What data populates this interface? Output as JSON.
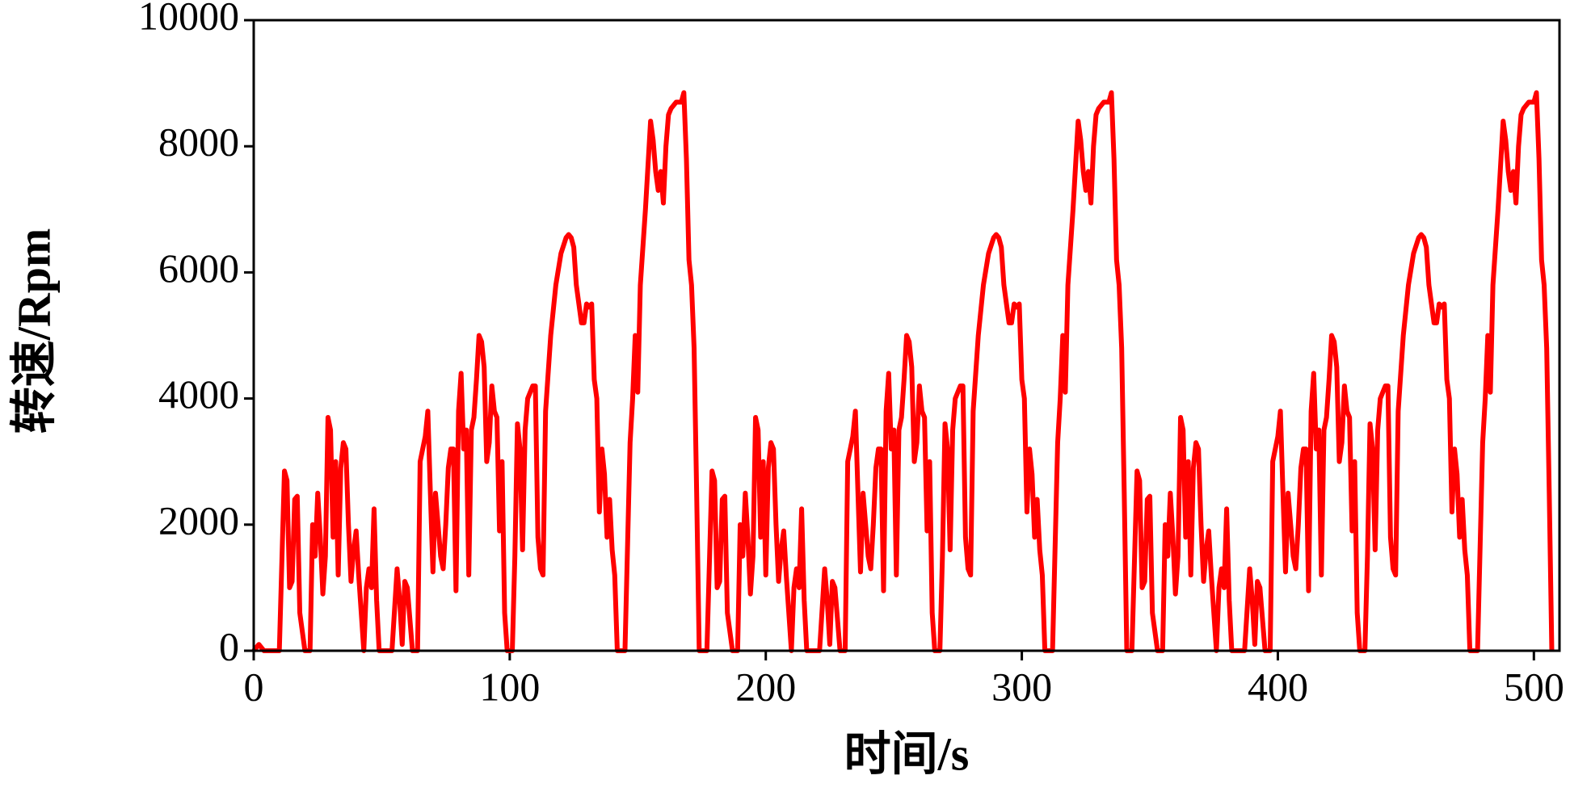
{
  "chart_data": {
    "type": "line",
    "xlabel": "时间/s",
    "ylabel": "转速/Rpm",
    "xlim": [
      0,
      510
    ],
    "xticks": [
      0,
      100,
      200,
      300,
      400,
      500
    ],
    "ylim": [
      0,
      10000
    ],
    "yticks": [
      0,
      2000,
      4000,
      6000,
      8000,
      10000
    ],
    "x": [
      0,
      2,
      4,
      10,
      12,
      13,
      14,
      15,
      16,
      17,
      18,
      20,
      22,
      23,
      24,
      25,
      26,
      27,
      28,
      29,
      30,
      31,
      32,
      33,
      34,
      35,
      36,
      37,
      38,
      39,
      40,
      41,
      42,
      43,
      44,
      45,
      46,
      47,
      48,
      49,
      54,
      56,
      57,
      58,
      59,
      60,
      62,
      64,
      65,
      67,
      68,
      69,
      70,
      71,
      72,
      73,
      74,
      75,
      76,
      77,
      78,
      79,
      80,
      81,
      82,
      83,
      84,
      85,
      86,
      87,
      88,
      89,
      90,
      91,
      92,
      93,
      94,
      95,
      96,
      97,
      98,
      99,
      101,
      102,
      103,
      104,
      105,
      106,
      107,
      108,
      109,
      110,
      111,
      112,
      113,
      114,
      116,
      118,
      120,
      122,
      123,
      124,
      125,
      126,
      127,
      128,
      129,
      130,
      131,
      132,
      133,
      134,
      135,
      136,
      137,
      138,
      139,
      140,
      141,
      142,
      145,
      147,
      148,
      149,
      150,
      151,
      153,
      155,
      156,
      157,
      158,
      159,
      160,
      161,
      162,
      163,
      165,
      167,
      168,
      169,
      170,
      171,
      172,
      173,
      174,
      177,
      179,
      180,
      181,
      182,
      183,
      184,
      185,
      187,
      189,
      190,
      191,
      192,
      193,
      194,
      195,
      196,
      197,
      198,
      199,
      200,
      201,
      202,
      203,
      204,
      205,
      206,
      207,
      208,
      209,
      210,
      211,
      212,
      213,
      214,
      215,
      216,
      221,
      223,
      224,
      225,
      226,
      227,
      229,
      231,
      232,
      234,
      235,
      236,
      237,
      238,
      239,
      240,
      241,
      242,
      243,
      244,
      245,
      246,
      247,
      248,
      249,
      250,
      251,
      252,
      253,
      254,
      255,
      256,
      257,
      258,
      259,
      260,
      261,
      262,
      263,
      264,
      265,
      266,
      268,
      269,
      270,
      271,
      272,
      273,
      274,
      275,
      276,
      277,
      278,
      279,
      280,
      281,
      283,
      285,
      287,
      289,
      290,
      291,
      292,
      293,
      294,
      295,
      296,
      297,
      298,
      299,
      300,
      301,
      302,
      303,
      304,
      305,
      306,
      307,
      308,
      309,
      312,
      314,
      315,
      316,
      317,
      318,
      320,
      322,
      323,
      324,
      325,
      326,
      327,
      328,
      329,
      330,
      332,
      334,
      335,
      336,
      337,
      338,
      339,
      340,
      341,
      343,
      345,
      346,
      347,
      348,
      349,
      350,
      351,
      353,
      355,
      356,
      357,
      358,
      359,
      360,
      361,
      362,
      363,
      364,
      365,
      366,
      367,
      368,
      369,
      370,
      371,
      372,
      373,
      374,
      375,
      376,
      377,
      378,
      379,
      380,
      381,
      382,
      387,
      389,
      390,
      391,
      392,
      393,
      395,
      397,
      398,
      400,
      401,
      402,
      403,
      404,
      405,
      406,
      407,
      408,
      409,
      410,
      411,
      412,
      413,
      414,
      415,
      416,
      417,
      418,
      419,
      420,
      421,
      422,
      423,
      424,
      425,
      426,
      427,
      428,
      429,
      430,
      431,
      432,
      434,
      435,
      436,
      437,
      438,
      439,
      440,
      441,
      442,
      443,
      444,
      445,
      446,
      447,
      449,
      451,
      453,
      455,
      456,
      457,
      458,
      459,
      460,
      461,
      462,
      463,
      464,
      465,
      466,
      467,
      468,
      469,
      470,
      471,
      472,
      473,
      474,
      475,
      478,
      480,
      481,
      482,
      483,
      484,
      486,
      488,
      489,
      490,
      491,
      492,
      493,
      494,
      495,
      496,
      498,
      500,
      501,
      502,
      503,
      504,
      505,
      506,
      507
    ],
    "series": [
      {
        "name": "转速",
        "color": "#ff0000",
        "values": [
          0,
          100,
          0,
          0,
          2850,
          2700,
          1000,
          1100,
          2400,
          2450,
          600,
          0,
          0,
          2000,
          1500,
          2500,
          1800,
          900,
          1500,
          3700,
          3500,
          1800,
          3000,
          1200,
          2900,
          3300,
          3200,
          2000,
          1100,
          1600,
          1900,
          1200,
          600,
          0,
          1000,
          1300,
          1000,
          2250,
          800,
          0,
          0,
          1300,
          800,
          100,
          1100,
          1000,
          0,
          0,
          3000,
          3400,
          3800,
          2500,
          1250,
          2500,
          2000,
          1500,
          1300,
          2000,
          2900,
          3200,
          3200,
          950,
          3800,
          4400,
          3200,
          3500,
          1200,
          3500,
          3700,
          4300,
          5000,
          4900,
          4500,
          3000,
          3300,
          4200,
          3800,
          3700,
          1900,
          3000,
          600,
          0,
          0,
          1500,
          3600,
          3200,
          1600,
          3500,
          4000,
          4100,
          4200,
          4200,
          1800,
          1300,
          1200,
          3800,
          5000,
          5800,
          6300,
          6550,
          6600,
          6550,
          6400,
          5800,
          5500,
          5200,
          5200,
          5500,
          5450,
          5500,
          4300,
          4000,
          2200,
          3200,
          2800,
          1800,
          2400,
          1600,
          1200,
          0,
          0,
          3300,
          4000,
          5000,
          4100,
          5800,
          7000,
          8400,
          8100,
          7600,
          7300,
          7600,
          7100,
          8000,
          8500,
          8600,
          8700,
          8700,
          8850,
          7800,
          6200,
          5800,
          4800,
          2500,
          0,
          0,
          2850,
          2700,
          1000,
          1100,
          2400,
          2450,
          600,
          0,
          0,
          2000,
          1500,
          2500,
          1800,
          900,
          1500,
          3700,
          3500,
          1800,
          3000,
          1200,
          2900,
          3300,
          3200,
          2000,
          1100,
          1600,
          1900,
          1200,
          600,
          0,
          1000,
          1300,
          1000,
          2250,
          800,
          0,
          0,
          1300,
          800,
          100,
          1100,
          1000,
          0,
          0,
          3000,
          3400,
          3800,
          2500,
          1250,
          2500,
          2000,
          1500,
          1300,
          2000,
          2900,
          3200,
          3200,
          950,
          3800,
          4400,
          3200,
          3500,
          1200,
          3500,
          3700,
          4300,
          5000,
          4900,
          4500,
          3000,
          3300,
          4200,
          3800,
          3700,
          1900,
          3000,
          600,
          0,
          0,
          1500,
          3600,
          3200,
          1600,
          3500,
          4000,
          4100,
          4200,
          4200,
          1800,
          1300,
          1200,
          3800,
          5000,
          5800,
          6300,
          6550,
          6600,
          6550,
          6400,
          5800,
          5500,
          5200,
          5200,
          5500,
          5450,
          5500,
          4300,
          4000,
          2200,
          3200,
          2800,
          1800,
          2400,
          1600,
          1200,
          0,
          0,
          3300,
          4000,
          5000,
          4100,
          5800,
          7000,
          8400,
          8100,
          7600,
          7300,
          7600,
          7100,
          8000,
          8500,
          8600,
          8700,
          8700,
          8850,
          7800,
          6200,
          5800,
          4800,
          2500,
          0,
          0,
          2850,
          2700,
          1000,
          1100,
          2400,
          2450,
          600,
          0,
          0,
          2000,
          1500,
          2500,
          1800,
          900,
          1500,
          3700,
          3500,
          1800,
          3000,
          1200,
          2900,
          3300,
          3200,
          2000,
          1100,
          1600,
          1900,
          1200,
          600,
          0,
          1000,
          1300,
          1000,
          2250,
          800,
          0,
          0,
          1300,
          800,
          100,
          1100,
          1000,
          0,
          0,
          3000,
          3400,
          3800,
          2500,
          1250,
          2500,
          2000,
          1500,
          1300,
          2000,
          2900,
          3200,
          3200,
          950,
          3800,
          4400,
          3200,
          3500,
          1200,
          3500,
          3700,
          4300,
          5000,
          4900,
          4500,
          3000,
          3300,
          4200,
          3800,
          3700,
          1900,
          3000,
          600,
          0,
          0,
          1500,
          3600,
          3200,
          1600,
          3500,
          4000,
          4100,
          4200,
          4200,
          1800,
          1300,
          1200,
          3800,
          5000,
          5800,
          6300,
          6550,
          6600,
          6550,
          6400,
          5800,
          5500,
          5200,
          5200,
          5500,
          5450,
          5500,
          4300,
          4000,
          2200,
          3200,
          2800,
          1800,
          2400,
          1600,
          1200,
          0,
          0,
          3300,
          4000,
          5000,
          4100,
          5800,
          7000,
          8400,
          8100,
          7600,
          7300,
          7600,
          7100,
          8000,
          8500,
          8600,
          8700,
          8700,
          8850,
          7800,
          6200,
          5800,
          4800,
          2500,
          0
        ]
      }
    ]
  }
}
